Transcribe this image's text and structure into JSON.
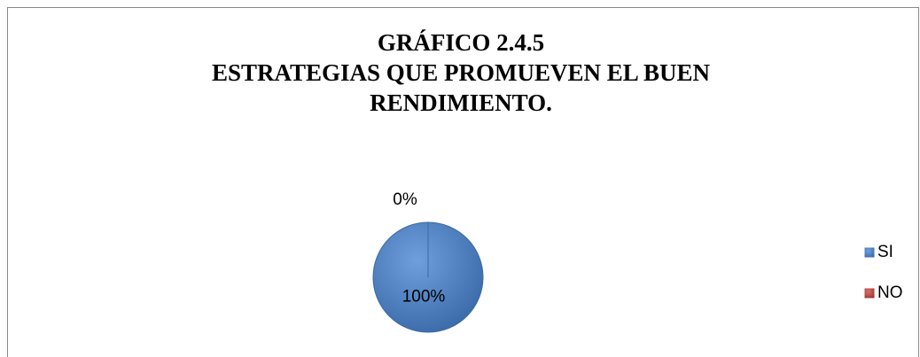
{
  "chart_data": {
    "type": "pie",
    "title": [
      "GRÁFICO 2.4.5",
      "ESTRATEGIAS QUE PROMUEVEN EL BUEN",
      "RENDIMIENTO."
    ],
    "categories": [
      "SI",
      "NO"
    ],
    "values": [
      100,
      0
    ],
    "value_labels": [
      "100%",
      "0%"
    ],
    "colors": [
      "#4f81bd",
      "#c0504d"
    ],
    "legend": "right"
  }
}
